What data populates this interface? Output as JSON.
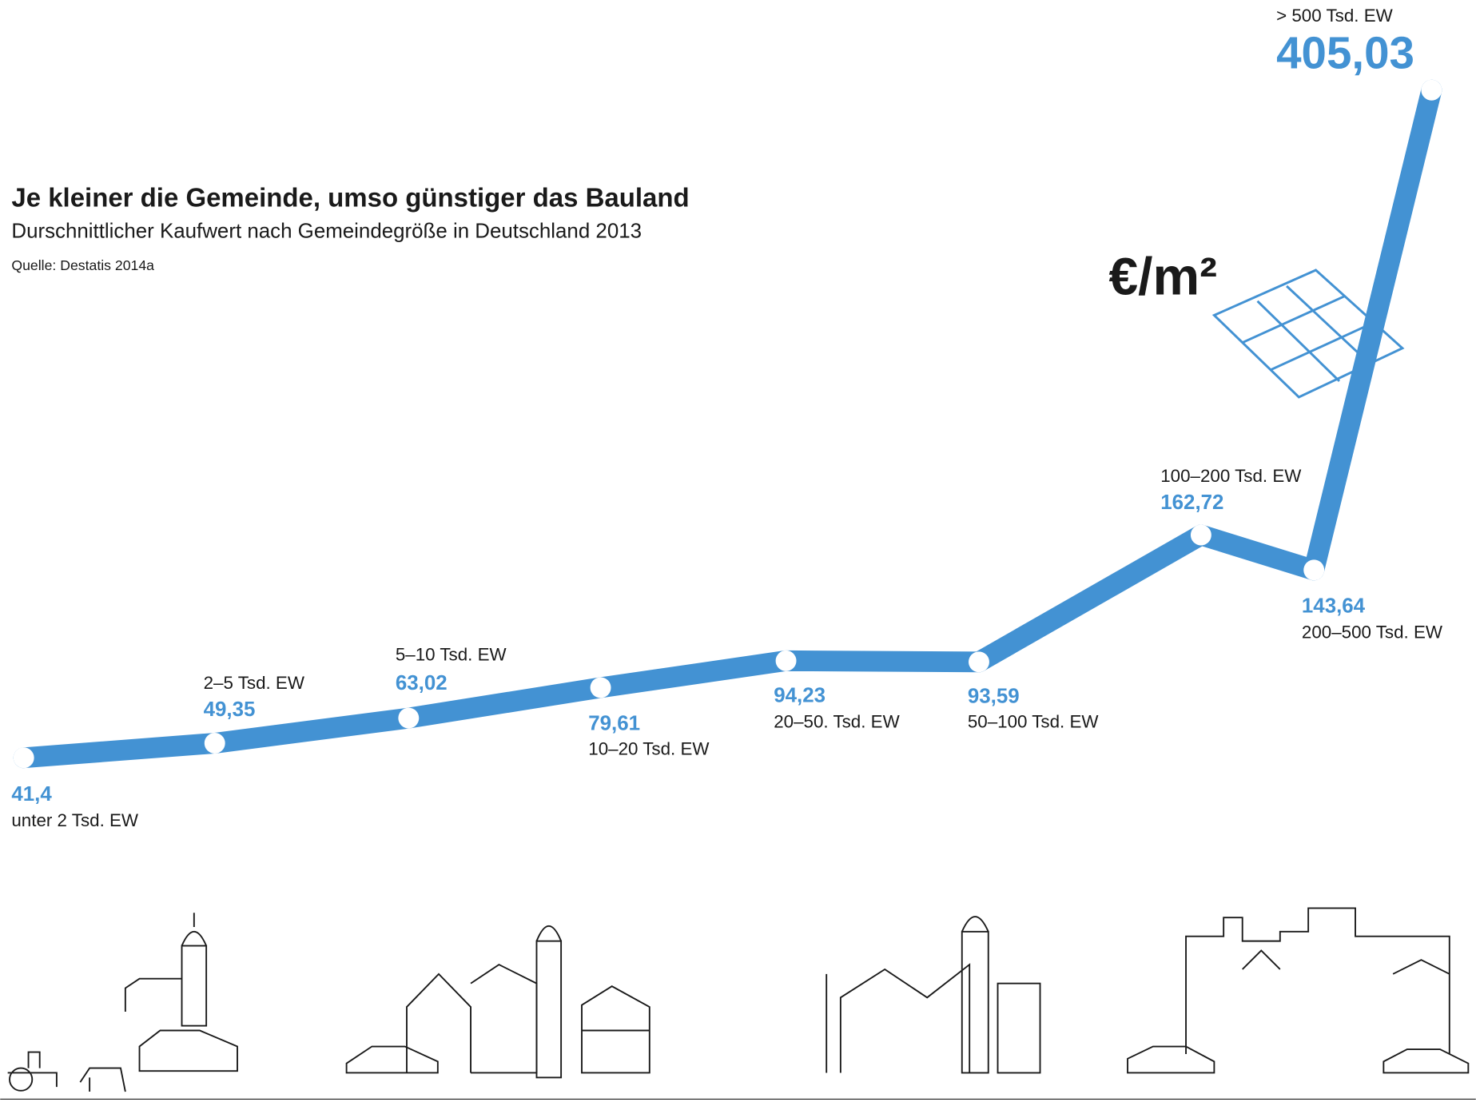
{
  "chart_data": {
    "type": "line",
    "title": "Je kleiner die Gemeinde, umso günstiger das Bauland",
    "subtitle": "Durschnittlicher Kaufwert nach Gemeindegröße in Deutschland 2013",
    "source": "Quelle: Destatis 2014a",
    "unit": "€/m²",
    "categories": [
      "unter 2 Tsd. EW",
      "2–5 Tsd. EW",
      "5–10 Tsd. EW",
      "10–20 Tsd. EW",
      "20–50. Tsd. EW",
      "50–100 Tsd. EW",
      "100–200 Tsd.  EW",
      "200–500 Tsd. EW",
      "> 500 Tsd. EW"
    ],
    "values": [
      41.4,
      49.35,
      63.02,
      79.61,
      94.23,
      93.59,
      162.72,
      143.64,
      405.03
    ],
    "value_labels": [
      "41,4",
      "49,35",
      "63,02",
      "79,61",
      "94,23",
      "93,59",
      "162,72",
      "143,64",
      "405,03"
    ],
    "color": "#4392d3",
    "ylim": [
      0,
      450
    ]
  }
}
